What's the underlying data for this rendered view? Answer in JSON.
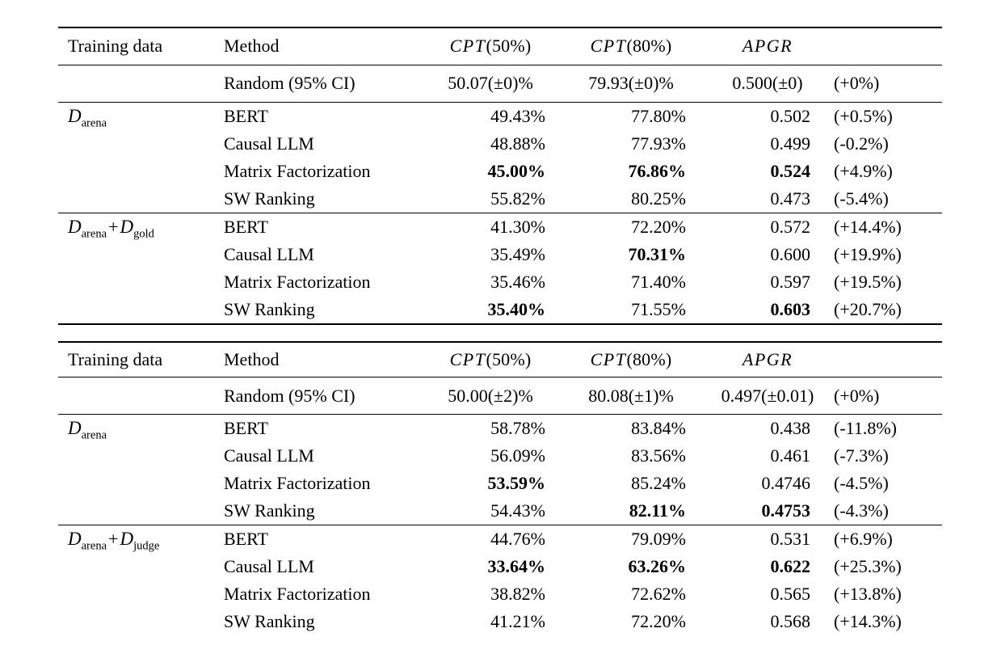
{
  "page": {
    "background": "#ffffff",
    "text_color": "#000000"
  },
  "tables": [
    {
      "headers": {
        "training": "Training data",
        "method": "Method",
        "cpt50": {
          "math": "CPT",
          "paren": "(50%)"
        },
        "cpt80": {
          "math": "CPT",
          "paren": "(80%)"
        },
        "apgr": "APGR"
      },
      "random": {
        "method": "Random (95% CI)",
        "cpt50": "50.07(±0)%",
        "cpt80": "79.93(±0)%",
        "apgr": "0.500(±0)",
        "delta": "(+0%)"
      },
      "groups": [
        {
          "label": {
            "d1": "D",
            "sub1": "arena"
          },
          "rows": [
            {
              "method": "BERT",
              "cpt50": "49.43%",
              "cpt80": "77.80%",
              "apgr": "0.502",
              "delta": "(+0.5%)",
              "bold": []
            },
            {
              "method": "Causal LLM",
              "cpt50": "48.88%",
              "cpt80": "77.93%",
              "apgr": "0.499",
              "delta": "(-0.2%)",
              "bold": []
            },
            {
              "method": "Matrix Factorization",
              "cpt50": "45.00%",
              "cpt80": "76.86%",
              "apgr": "0.524",
              "delta": "(+4.9%)",
              "bold": [
                "cpt50",
                "cpt80",
                "apgr"
              ]
            },
            {
              "method": "SW Ranking",
              "cpt50": "55.82%",
              "cpt80": "80.25%",
              "apgr": "0.473",
              "delta": "(-5.4%)",
              "bold": []
            }
          ]
        },
        {
          "label": {
            "d1": "D",
            "sub1": "arena",
            "plus": "+",
            "d2": "D",
            "sub2": "gold"
          },
          "rows": [
            {
              "method": "BERT",
              "cpt50": "41.30%",
              "cpt80": "72.20%",
              "apgr": "0.572",
              "delta": "(+14.4%)",
              "bold": []
            },
            {
              "method": "Causal LLM",
              "cpt50": "35.49%",
              "cpt80": "70.31%",
              "apgr": "0.600",
              "delta": "(+19.9%)",
              "bold": [
                "cpt80"
              ]
            },
            {
              "method": "Matrix Factorization",
              "cpt50": "35.46%",
              "cpt80": "71.40%",
              "apgr": "0.597",
              "delta": "(+19.5%)",
              "bold": []
            },
            {
              "method": "SW Ranking",
              "cpt50": "35.40%",
              "cpt80": "71.55%",
              "apgr": "0.603",
              "delta": "(+20.7%)",
              "bold": [
                "cpt50",
                "apgr"
              ]
            }
          ]
        }
      ]
    },
    {
      "headers": {
        "training": "Training data",
        "method": "Method",
        "cpt50": {
          "math": "CPT",
          "paren": "(50%)"
        },
        "cpt80": {
          "math": "CPT",
          "paren": "(80%)"
        },
        "apgr": "APGR"
      },
      "random": {
        "method": "Random (95% CI)",
        "cpt50": "50.00(±2)%",
        "cpt80": "80.08(±1)%",
        "apgr": "0.497(±0.01)",
        "delta": "(+0%)"
      },
      "groups": [
        {
          "label": {
            "d1": "D",
            "sub1": "arena"
          },
          "rows": [
            {
              "method": "BERT",
              "cpt50": "58.78%",
              "cpt80": "83.84%",
              "apgr": "0.438",
              "delta": "(-11.8%)",
              "bold": []
            },
            {
              "method": "Causal LLM",
              "cpt50": "56.09%",
              "cpt80": "83.56%",
              "apgr": "0.461",
              "delta": "(-7.3%)",
              "bold": []
            },
            {
              "method": "Matrix Factorization",
              "cpt50": "53.59%",
              "cpt80": "85.24%",
              "apgr": "0.4746",
              "delta": "(-4.5%)",
              "bold": [
                "cpt50"
              ]
            },
            {
              "method": "SW Ranking",
              "cpt50": "54.43%",
              "cpt80": "82.11%",
              "apgr": "0.4753",
              "delta": "(-4.3%)",
              "bold": [
                "cpt80",
                "apgr"
              ]
            }
          ]
        },
        {
          "label": {
            "d1": "D",
            "sub1": "arena",
            "plus": "+",
            "d2": "D",
            "sub2": "judge"
          },
          "rows": [
            {
              "method": "BERT",
              "cpt50": "44.76%",
              "cpt80": "79.09%",
              "apgr": "0.531",
              "delta": "(+6.9%)",
              "bold": []
            },
            {
              "method": "Causal LLM",
              "cpt50": "33.64%",
              "cpt80": "63.26%",
              "apgr": "0.622",
              "delta": "(+25.3%)",
              "bold": [
                "cpt50",
                "cpt80",
                "apgr"
              ]
            },
            {
              "method": "Matrix Factorization",
              "cpt50": "38.82%",
              "cpt80": "72.62%",
              "apgr": "0.565",
              "delta": "(+13.8%)",
              "bold": []
            },
            {
              "method": "SW Ranking",
              "cpt50": "41.21%",
              "cpt80": "72.20%",
              "apgr": "0.568",
              "delta": "(+14.3%)",
              "bold": []
            }
          ]
        }
      ]
    }
  ]
}
